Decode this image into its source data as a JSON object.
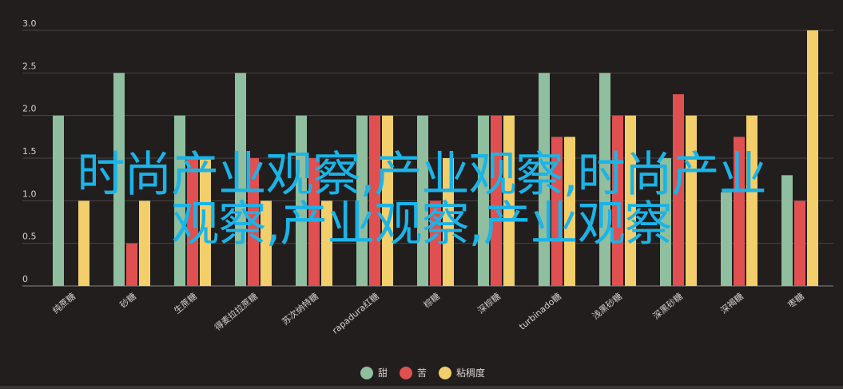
{
  "chart_data": {
    "type": "bar",
    "categories": [
      "纯蔗糖",
      "砂糖",
      "生蔗糖",
      "得麦拉拉蔗糖",
      "苏次纳特糖",
      "rapadura红糖",
      "棕糖",
      "深棕糖",
      "turbinado糖",
      "浅黑砂糖",
      "深黑砂糖",
      "深褐糖",
      "枣糖"
    ],
    "series": [
      {
        "name": "甜",
        "color": "#8fbf9f",
        "values": [
          2.0,
          2.5,
          2.0,
          2.5,
          2.0,
          2.0,
          2.0,
          2.0,
          2.5,
          2.5,
          1.5,
          1.1,
          1.3
        ]
      },
      {
        "name": "苦",
        "color": "#e05050",
        "values": [
          0,
          0.5,
          1.5,
          1.5,
          1.5,
          2.0,
          1.0,
          2.0,
          1.75,
          2.0,
          2.25,
          1.75,
          1.0
        ]
      },
      {
        "name": "粘稠度",
        "color": "#f2cf6a",
        "values": [
          1.0,
          1.0,
          1.5,
          1.0,
          1.0,
          2.0,
          1.5,
          2.0,
          1.75,
          2.0,
          2.0,
          2.0,
          3.0
        ]
      }
    ],
    "ylim": [
      0,
      3.0
    ],
    "yticks": [
      "0",
      "0.5",
      "1.0",
      "1.5",
      "2.0",
      "2.5",
      "3.0"
    ],
    "grid": true,
    "legend_position": "bottom-center"
  },
  "overlay_text": "时尚产业观察,产业观察,时尚产业观察,产业观察,产业观察"
}
